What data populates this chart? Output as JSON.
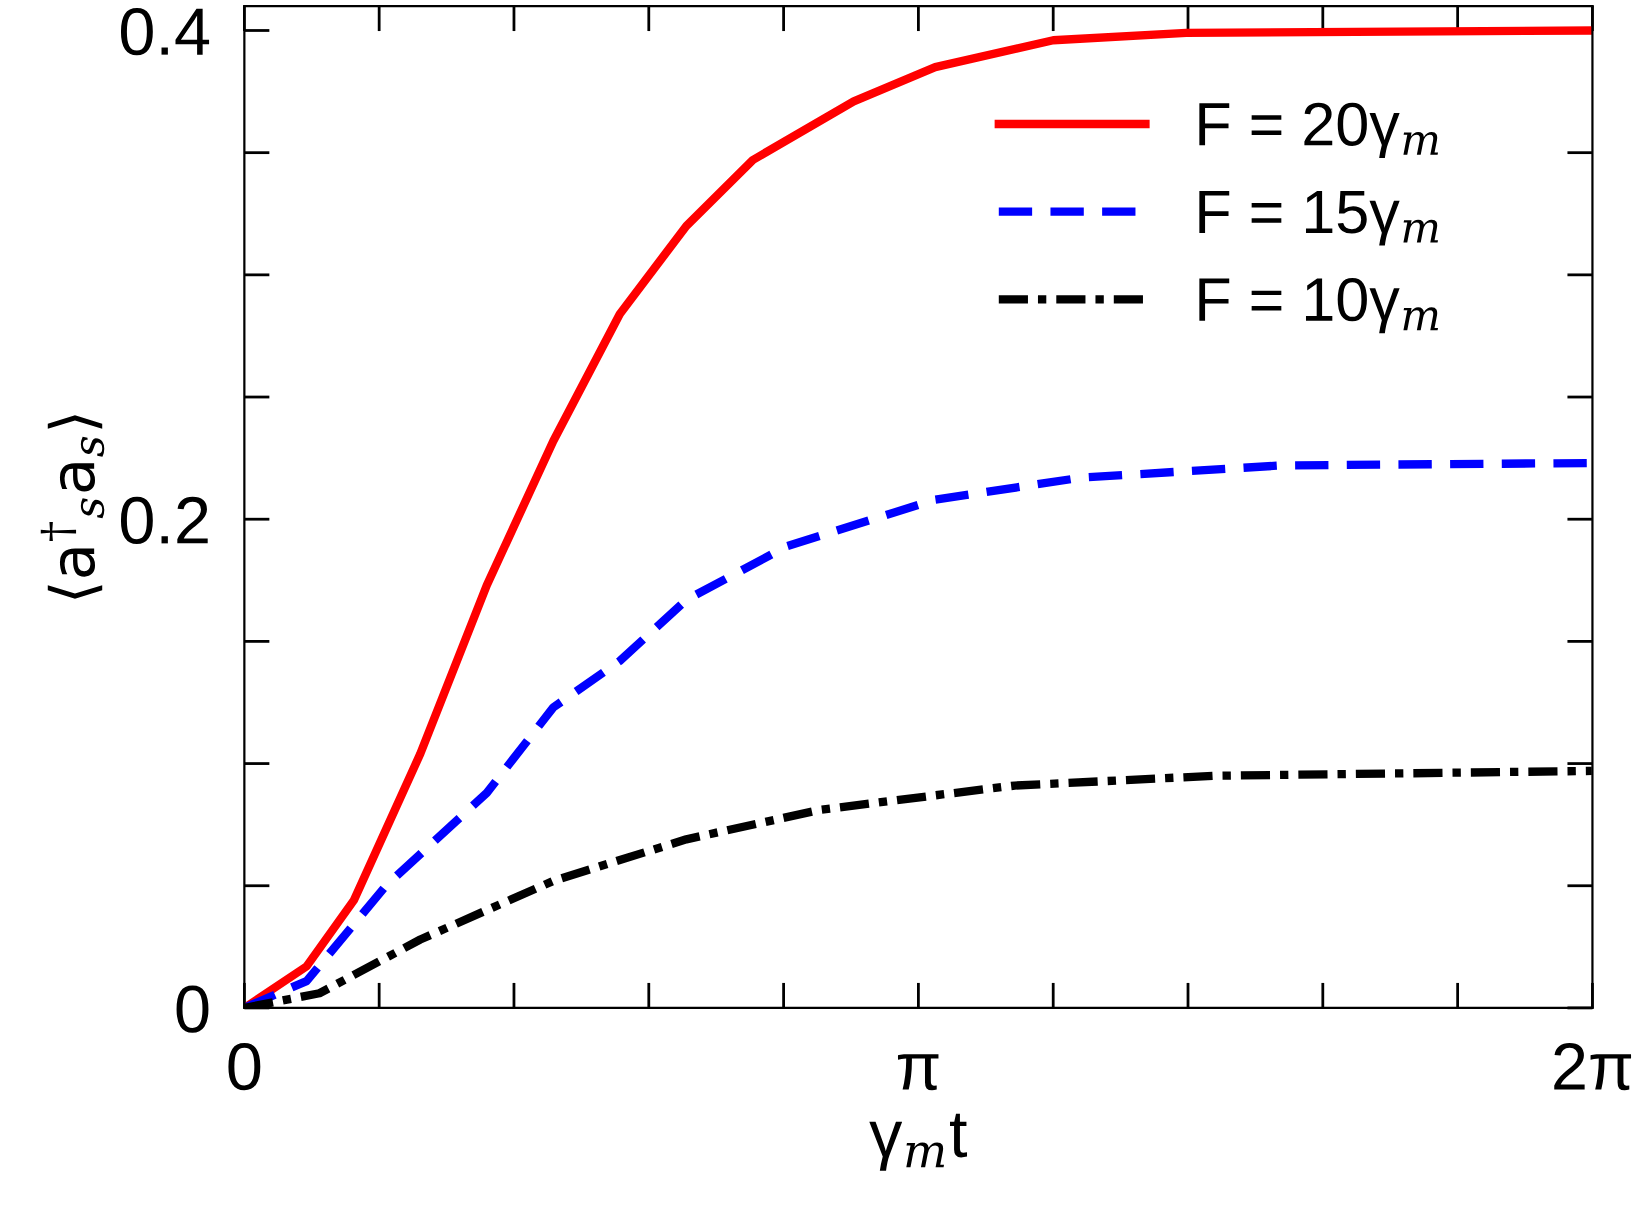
{
  "chart_data": {
    "type": "line",
    "xlabel": "γ$_{m}$t",
    "ylabel": "⟨a$^{†}$$_{s}$a$_{s}$⟩",
    "series": [
      {
        "name": "F = 20γ$_{m}$",
        "color": "#ff0000",
        "line_style": "solid",
        "x": [
          0,
          0.29,
          0.51,
          0.82,
          1.13,
          1.44,
          1.75,
          2.06,
          2.37,
          2.84,
          3.22,
          3.77,
          4.39,
          6.28
        ],
        "values": [
          0,
          0.017,
          0.044,
          0.104,
          0.173,
          0.232,
          0.284,
          0.32,
          0.347,
          0.371,
          0.385,
          0.396,
          0.399,
          0.4
        ]
      },
      {
        "name": "F = 15γ$_{m}$",
        "color": "#0000ff",
        "line_style": "dashed",
        "x": [
          0,
          0.29,
          0.66,
          1.13,
          1.44,
          1.75,
          2.06,
          2.53,
          3.22,
          3.9,
          4.83,
          6.28
        ],
        "values": [
          0,
          0.011,
          0.05,
          0.088,
          0.123,
          0.142,
          0.167,
          0.189,
          0.208,
          0.217,
          0.222,
          0.223
        ]
      },
      {
        "name": "F = 10γ$_{m}$",
        "color": "#000000",
        "line_style": "dashdot",
        "x": [
          0,
          0.35,
          0.82,
          1.44,
          2.06,
          2.68,
          3.22,
          3.59,
          4.52,
          6.28
        ],
        "values": [
          0,
          0.006,
          0.028,
          0.052,
          0.069,
          0.081,
          0.087,
          0.091,
          0.095,
          0.097
        ]
      }
    ],
    "xlim": [
      0,
      6.2832
    ],
    "ylim": [
      0,
      0.41
    ],
    "xticks": [
      {
        "value": 0,
        "label": "0"
      },
      {
        "value": 0.6283,
        "label": null
      },
      {
        "value": 1.2566,
        "label": null
      },
      {
        "value": 1.885,
        "label": null
      },
      {
        "value": 2.5133,
        "label": null
      },
      {
        "value": 3.1416,
        "label": "π"
      },
      {
        "value": 3.7699,
        "label": null
      },
      {
        "value": 4.3982,
        "label": null
      },
      {
        "value": 5.0265,
        "label": null
      },
      {
        "value": 5.6549,
        "label": null
      },
      {
        "value": 6.2832,
        "label": "2π"
      }
    ],
    "yticks": [
      0,
      {
        "value": 0.05,
        "label": null
      },
      {
        "value": 0.1,
        "label": null
      },
      {
        "value": 0.15,
        "label": null
      },
      0.2,
      {
        "value": 0.25,
        "label": null
      },
      {
        "value": 0.3,
        "label": null
      },
      {
        "value": 0.35,
        "label": null
      },
      0.4
    ],
    "grid": false,
    "legend": "top right",
    "marker": "none"
  }
}
